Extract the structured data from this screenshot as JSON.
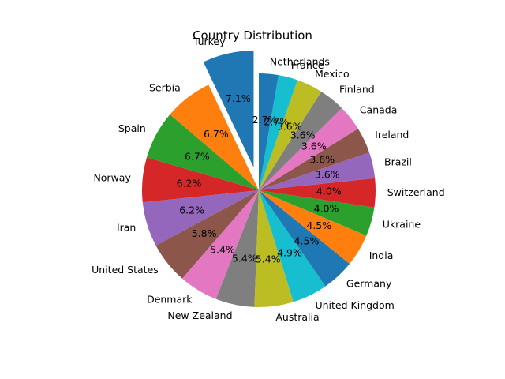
{
  "chart_data": {
    "type": "pie",
    "title": "Country Distribution",
    "start_angle_deg": 90,
    "direction": "counterclockwise",
    "autopct_format": "1 decimal percent",
    "legend": "none",
    "slices": [
      {
        "label": "Turkey",
        "value": 7.1,
        "pct_label": "7.1%",
        "color": "#1f77b4",
        "exploded": true
      },
      {
        "label": "Serbia",
        "value": 6.7,
        "pct_label": "6.7%",
        "color": "#ff7f0e",
        "exploded": false
      },
      {
        "label": "Spain",
        "value": 6.7,
        "pct_label": "6.7%",
        "color": "#2ca02c",
        "exploded": false
      },
      {
        "label": "Norway",
        "value": 6.2,
        "pct_label": "6.2%",
        "color": "#d62728",
        "exploded": false
      },
      {
        "label": "Iran",
        "value": 6.2,
        "pct_label": "6.2%",
        "color": "#9467bd",
        "exploded": false
      },
      {
        "label": "United States",
        "value": 5.8,
        "pct_label": "5.8%",
        "color": "#8c564b",
        "exploded": false
      },
      {
        "label": "Denmark",
        "value": 5.4,
        "pct_label": "5.4%",
        "color": "#e377c2",
        "exploded": false
      },
      {
        "label": "New Zealand",
        "value": 5.4,
        "pct_label": "5.4%",
        "color": "#7f7f7f",
        "exploded": false
      },
      {
        "label": "Australia",
        "value": 5.4,
        "pct_label": "5.4%",
        "color": "#bcbd22",
        "exploded": false
      },
      {
        "label": "United Kingdom",
        "value": 4.9,
        "pct_label": "4.9%",
        "color": "#17becf",
        "exploded": false
      },
      {
        "label": "Germany",
        "value": 4.5,
        "pct_label": "4.5%",
        "color": "#1f77b4",
        "exploded": false
      },
      {
        "label": "India",
        "value": 4.5,
        "pct_label": "4.5%",
        "color": "#ff7f0e",
        "exploded": false
      },
      {
        "label": "Ukraine",
        "value": 4.0,
        "pct_label": "4.0%",
        "color": "#2ca02c",
        "exploded": false
      },
      {
        "label": "Switzerland",
        "value": 4.0,
        "pct_label": "4.0%",
        "color": "#d62728",
        "exploded": false
      },
      {
        "label": "Brazil",
        "value": 3.6,
        "pct_label": "3.6%",
        "color": "#9467bd",
        "exploded": false
      },
      {
        "label": "Ireland",
        "value": 3.6,
        "pct_label": "3.6%",
        "color": "#8c564b",
        "exploded": false
      },
      {
        "label": "Canada",
        "value": 3.6,
        "pct_label": "3.6%",
        "color": "#e377c2",
        "exploded": false
      },
      {
        "label": "Finland",
        "value": 3.6,
        "pct_label": "3.6%",
        "color": "#7f7f7f",
        "exploded": false
      },
      {
        "label": "Mexico",
        "value": 3.6,
        "pct_label": "3.6%",
        "color": "#bcbd22",
        "exploded": false
      },
      {
        "label": "France",
        "value": 2.7,
        "pct_label": "2.7%",
        "color": "#17becf",
        "exploded": false
      },
      {
        "label": "Netherlands",
        "value": 2.7,
        "pct_label": "2.7%",
        "color": "#1f77b4",
        "exploded": false
      }
    ]
  }
}
